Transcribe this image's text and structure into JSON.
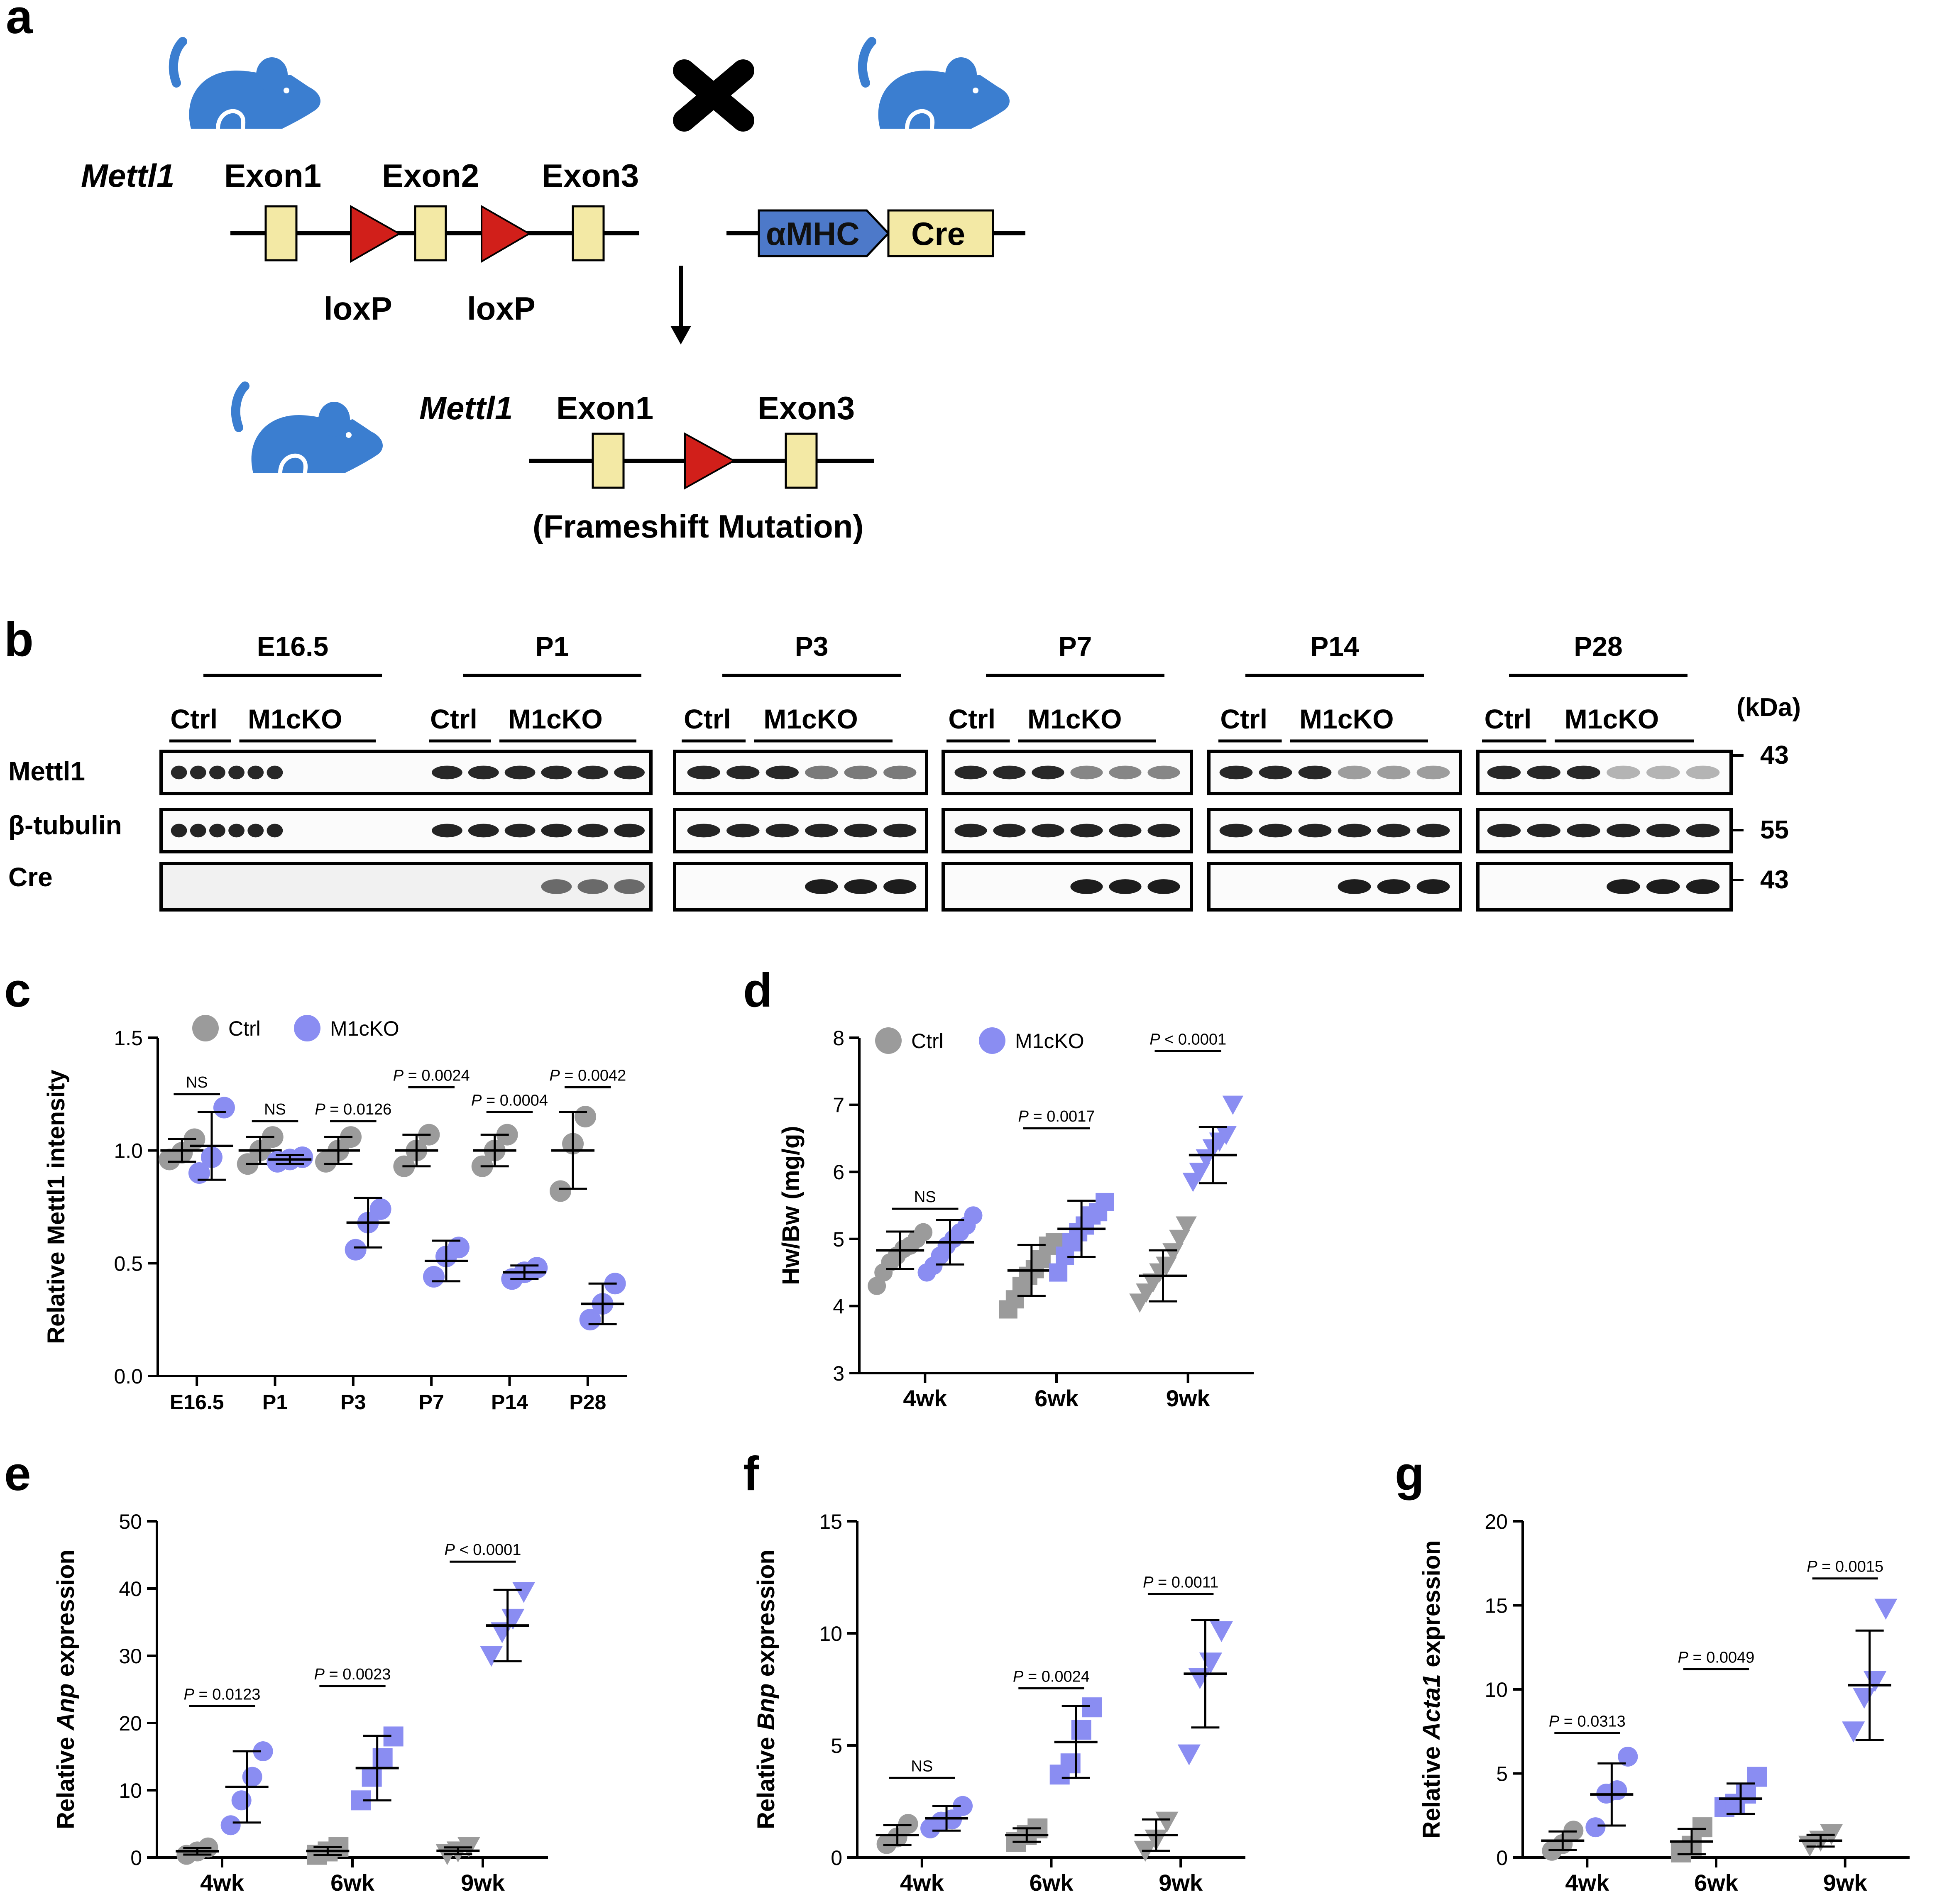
{
  "colors": {
    "ctrl": "#9b9b9b",
    "m1cko": "#8a8df2",
    "mouse": "#3b7ed0",
    "exon": "#f3e9a5",
    "loxp": "#d11f1a",
    "amhc": "#4d79c9"
  },
  "panel_a": {
    "letter": "a",
    "gene_name": "Mettl1",
    "exon1": "Exon1",
    "exon2": "Exon2",
    "exon3": "Exon3",
    "loxp": "loxP",
    "promoter": "αMHC",
    "cre": "Cre",
    "result_gene": "Mettl1",
    "result_exon1": "Exon1",
    "result_exon3": "Exon3",
    "result_note": "(Frameshift Mutation)",
    "cross_icon": "cross-icon",
    "mouse_icon": "mouse-icon"
  },
  "panel_b": {
    "letter": "b",
    "timepoints": [
      "E16.5",
      "P1",
      "P3",
      "P7",
      "P14",
      "P28"
    ],
    "ctrl_label": "Ctrl",
    "ko_label": "M1cKO",
    "rows": [
      "Mettl1",
      "β-tubulin",
      "Cre"
    ],
    "kda_label": "(kDa)",
    "kda_marks": [
      "43",
      "55",
      "43"
    ]
  },
  "chart_data": [
    {
      "panel": "c",
      "type": "scatter",
      "ylabel": "Relative Mettl1 intensity",
      "ylim": [
        0,
        1.5
      ],
      "yticks": [
        "0.0",
        "0.5",
        "1.0",
        "1.5"
      ],
      "categories": [
        "E16.5",
        "P1",
        "P3",
        "P7",
        "P14",
        "P28"
      ],
      "legend": [
        "Ctrl",
        "M1cKO"
      ],
      "series": [
        {
          "name": "Ctrl",
          "marker": "circle",
          "points": [
            [
              0.96,
              0.99,
              1.05
            ],
            [
              0.94,
              1.0,
              1.06
            ],
            [
              0.95,
              1.0,
              1.06
            ],
            [
              0.93,
              1.0,
              1.07
            ],
            [
              0.93,
              1.0,
              1.07
            ],
            [
              0.82,
              1.03,
              1.15
            ]
          ],
          "mean": [
            1.0,
            1.0,
            1.0,
            1.0,
            1.0,
            1.0
          ],
          "sd": [
            0.05,
            0.06,
            0.06,
            0.07,
            0.07,
            0.17
          ]
        },
        {
          "name": "M1cKO",
          "marker": "circle",
          "points": [
            [
              0.9,
              0.97,
              1.19
            ],
            [
              0.95,
              0.96,
              0.97
            ],
            [
              0.56,
              0.68,
              0.74
            ],
            [
              0.44,
              0.53,
              0.57
            ],
            [
              0.43,
              0.46,
              0.48
            ],
            [
              0.25,
              0.32,
              0.41
            ]
          ],
          "mean": [
            1.02,
            0.96,
            0.68,
            0.51,
            0.46,
            0.32
          ],
          "sd": [
            0.15,
            0.02,
            0.11,
            0.09,
            0.03,
            0.09
          ]
        }
      ],
      "comparisons": [
        {
          "label": "NS",
          "italic_p": false,
          "y": 1.25
        },
        {
          "label": "NS",
          "italic_p": false,
          "y": 1.13
        },
        {
          "label": "P = 0.0126",
          "italic_p": true,
          "y": 1.13
        },
        {
          "label": "P = 0.0024",
          "italic_p": true,
          "y": 1.28
        },
        {
          "label": "P = 0.0004",
          "italic_p": true,
          "y": 1.17
        },
        {
          "label": "P = 0.0042",
          "italic_p": true,
          "y": 1.28
        }
      ]
    },
    {
      "panel": "d",
      "type": "scatter",
      "ylabel": "Hw/Bw (mg/g)",
      "ylim": [
        3,
        8
      ],
      "yticks": [
        "3",
        "4",
        "5",
        "6",
        "7",
        "8"
      ],
      "categories": [
        "4wk",
        "6wk",
        "9wk"
      ],
      "legend": [
        "Ctrl",
        "M1cKO"
      ],
      "series": [
        {
          "name": "Ctrl",
          "markers": [
            "circle",
            "square",
            "triangle-down"
          ],
          "points": [
            [
              4.3,
              4.5,
              4.65,
              4.75,
              4.85,
              4.9,
              5.0,
              5.1
            ],
            [
              3.95,
              4.1,
              4.3,
              4.45,
              4.55,
              4.7,
              4.9,
              4.95
            ],
            [
              4.05,
              4.2,
              4.35,
              4.5,
              4.6,
              4.8,
              5.0,
              5.2
            ]
          ],
          "mean": [
            4.83,
            4.53,
            4.45
          ],
          "sd": [
            0.28,
            0.38,
            0.38
          ]
        },
        {
          "name": "M1cKO",
          "markers": [
            "circle",
            "square",
            "triangle-down"
          ],
          "points": [
            [
              4.5,
              4.6,
              4.75,
              4.9,
              5.0,
              5.1,
              5.2,
              5.35
            ],
            [
              4.5,
              4.75,
              4.95,
              5.1,
              5.2,
              5.35,
              5.4,
              5.55
            ],
            [
              5.85,
              6.0,
              6.2,
              6.35,
              6.45,
              6.55,
              7.0
            ]
          ],
          "mean": [
            4.95,
            5.15,
            6.25
          ],
          "sd": [
            0.33,
            0.42,
            0.42
          ]
        }
      ],
      "comparisons": [
        {
          "label": "NS",
          "italic_p": false,
          "y": 5.45
        },
        {
          "label": "P = 0.0017",
          "italic_p": true,
          "y": 6.65
        },
        {
          "label": "P < 0.0001",
          "italic_p": true,
          "y": 7.8
        }
      ]
    },
    {
      "panel": "e",
      "type": "scatter",
      "ylabel_pre": "Relative ",
      "ylabel_gene": "Anp",
      "ylabel_post": " expression",
      "ylim": [
        0,
        50
      ],
      "yticks": [
        "0",
        "10",
        "20",
        "30",
        "40",
        "50"
      ],
      "categories": [
        "4wk",
        "6wk",
        "9wk"
      ],
      "series": [
        {
          "name": "Ctrl",
          "markers": [
            "circle",
            "square",
            "triangle-down"
          ],
          "points": [
            [
              0.4,
              0.9,
              1.5
            ],
            [
              0.4,
              0.9,
              1.6
            ],
            [
              0.5,
              0.9,
              1.6
            ]
          ],
          "mean": [
            0.93,
            0.97,
            1.0
          ],
          "sd": [
            0.5,
            0.6,
            0.5
          ]
        },
        {
          "name": "M1cKO",
          "markers": [
            "circle",
            "square",
            "triangle-down"
          ],
          "points": [
            [
              4.8,
              8.5,
              12.0,
              15.8
            ],
            [
              8.5,
              12.0,
              14.8,
              18.0
            ],
            [
              30.0,
              33.5,
              35.5,
              39.5
            ]
          ],
          "mean": [
            10.5,
            13.3,
            34.5
          ],
          "sd": [
            5.3,
            4.8,
            5.3
          ]
        }
      ],
      "comparisons": [
        {
          "label": "P = 0.0123",
          "italic_p": true,
          "y": 22.5
        },
        {
          "label": "P = 0.0023",
          "italic_p": true,
          "y": 25.5
        },
        {
          "label": "P < 0.0001",
          "italic_p": true,
          "y": 44.0
        }
      ]
    },
    {
      "panel": "f",
      "type": "scatter",
      "ylabel_pre": "Relative ",
      "ylabel_gene": "Bnp",
      "ylabel_post": " expression",
      "ylim": [
        0,
        15
      ],
      "yticks": [
        "0",
        "5",
        "10",
        "15"
      ],
      "categories": [
        "4wk",
        "6wk",
        "9wk"
      ],
      "series": [
        {
          "name": "Ctrl",
          "markers": [
            "circle",
            "square",
            "triangle-down"
          ],
          "points": [
            [
              0.6,
              0.9,
              1.5
            ],
            [
              0.7,
              1.0,
              1.3
            ],
            [
              0.3,
              0.8,
              1.6
            ]
          ],
          "mean": [
            1.0,
            1.0,
            1.0
          ],
          "sd": [
            0.45,
            0.3,
            0.7
          ]
        },
        {
          "name": "M1cKO",
          "markers": [
            "circle",
            "square",
            "triangle-down"
          ],
          "points": [
            [
              1.3,
              1.6,
              1.7,
              2.3
            ],
            [
              3.7,
              4.2,
              5.7,
              6.7
            ],
            [
              4.6,
              8.0,
              8.7,
              10.1
            ]
          ],
          "mean": [
            1.75,
            5.15,
            8.2
          ],
          "sd": [
            0.55,
            1.6,
            2.4
          ]
        }
      ],
      "comparisons": [
        {
          "label": "NS",
          "italic_p": false,
          "y": 3.55
        },
        {
          "label": "P = 0.0024",
          "italic_p": true,
          "y": 7.55
        },
        {
          "label": "P = 0.0011",
          "italic_p": true,
          "y": 11.75
        }
      ]
    },
    {
      "panel": "g",
      "type": "scatter",
      "ylabel_pre": "Relative ",
      "ylabel_gene": "Acta1",
      "ylabel_post": " expression",
      "ylim": [
        0,
        20
      ],
      "yticks": [
        "0",
        "5",
        "10",
        "15",
        "20"
      ],
      "categories": [
        "4wk",
        "6wk",
        "9wk"
      ],
      "series": [
        {
          "name": "Ctrl",
          "markers": [
            "circle",
            "square",
            "triangle-down"
          ],
          "points": [
            [
              0.4,
              0.8,
              1.6
            ],
            [
              0.3,
              0.7,
              1.8
            ],
            [
              0.7,
              1.0,
              1.4
            ]
          ],
          "mean": [
            1.0,
            0.95,
            1.0
          ],
          "sd": [
            0.55,
            0.75,
            0.35
          ]
        },
        {
          "name": "M1cKO",
          "markers": [
            "circle",
            "square",
            "triangle-down"
          ],
          "points": [
            [
              1.8,
              3.8,
              4.0,
              6.0
            ],
            [
              3.0,
              3.2,
              3.8,
              4.8
            ],
            [
              7.5,
              9.5,
              10.5,
              14.8
            ]
          ],
          "mean": [
            3.75,
            3.5,
            10.25
          ],
          "sd": [
            1.85,
            0.9,
            3.25
          ]
        }
      ],
      "comparisons": [
        {
          "label": "P = 0.0313",
          "italic_p": true,
          "y": 7.4
        },
        {
          "label": "P = 0.0049",
          "italic_p": true,
          "y": 11.2
        },
        {
          "label": "P = 0.0015",
          "italic_p": true,
          "y": 16.6
        }
      ]
    }
  ]
}
